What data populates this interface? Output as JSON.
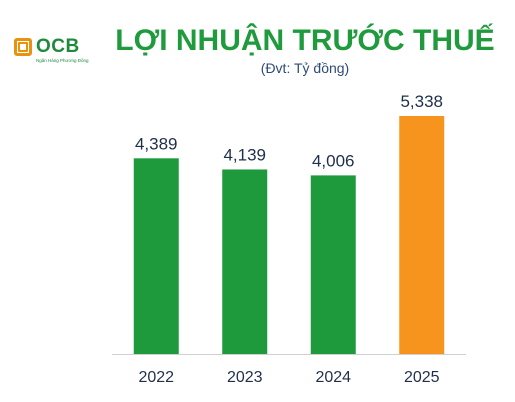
{
  "logo": {
    "name": "OCB",
    "tagline": "Ngân Hàng Phương Đông"
  },
  "chart_data": {
    "type": "bar",
    "title": "LỢI NHUẬN TRƯỚC THUẾ",
    "subtitle": "(Đvt: Tỷ đồng)",
    "categories": [
      "2022",
      "2023",
      "2024",
      "2025"
    ],
    "values": [
      4389,
      4139,
      4006,
      5338
    ],
    "value_labels": [
      "4,389",
      "4,139",
      "4,006",
      "5,338"
    ],
    "colors": [
      "#1e9a3c",
      "#1e9a3c",
      "#1e9a3c",
      "#f7941d"
    ],
    "ylim": [
      0,
      5338
    ],
    "grid": false,
    "legend": "none"
  }
}
